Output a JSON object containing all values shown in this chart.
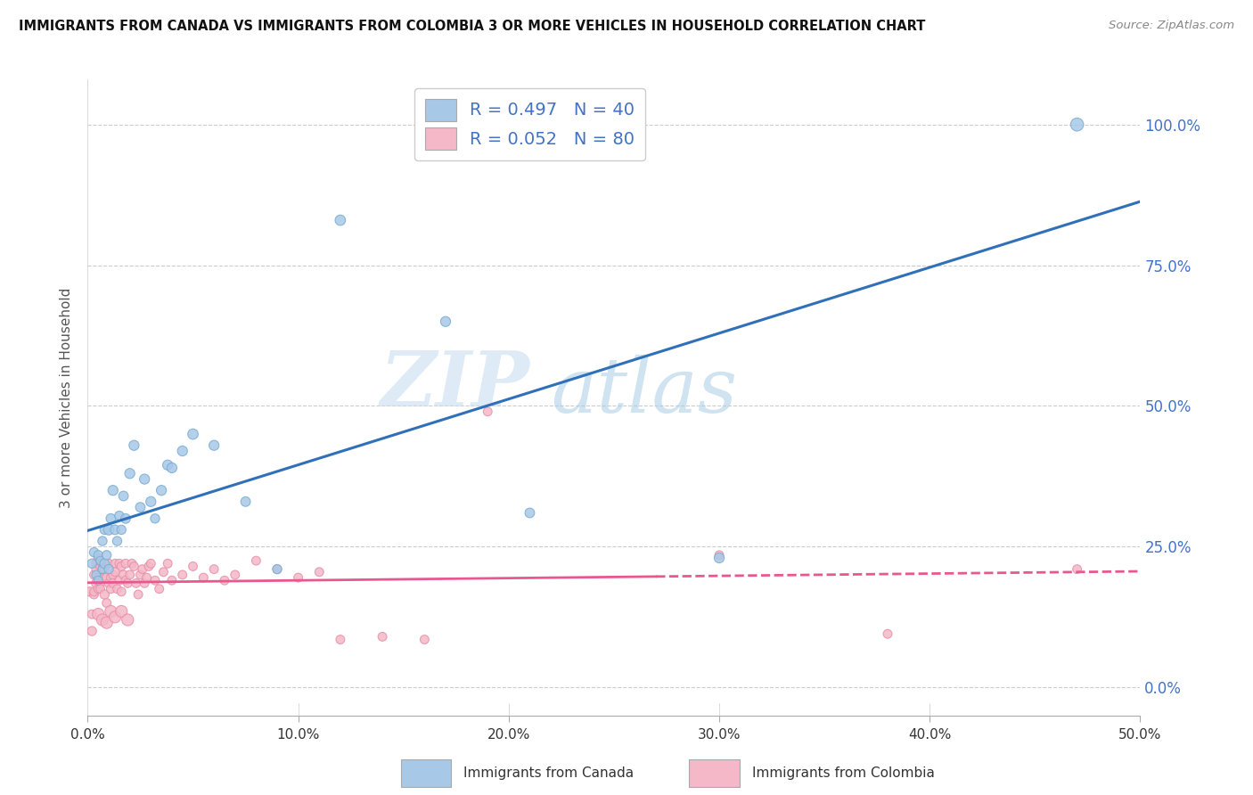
{
  "title": "IMMIGRANTS FROM CANADA VS IMMIGRANTS FROM COLOMBIA 3 OR MORE VEHICLES IN HOUSEHOLD CORRELATION CHART",
  "source": "Source: ZipAtlas.com",
  "ylabel": "3 or more Vehicles in Household",
  "xlim": [
    0.0,
    0.5
  ],
  "ylim": [
    -0.05,
    1.08
  ],
  "xticks": [
    0.0,
    0.1,
    0.2,
    0.3,
    0.4,
    0.5
  ],
  "xticklabels": [
    "0.0%",
    "10.0%",
    "20.0%",
    "30.0%",
    "40.0%",
    "50.0%"
  ],
  "yticks": [
    0.0,
    0.25,
    0.5,
    0.75,
    1.0
  ],
  "yticklabels": [
    "0.0%",
    "25.0%",
    "50.0%",
    "75.0%",
    "100.0%"
  ],
  "canada_color": "#a8c8e8",
  "colombia_color": "#f4b8c8",
  "canada_edge_color": "#7aaed0",
  "colombia_edge_color": "#e890a8",
  "canada_line_color": "#3070b8",
  "colombia_line_color": "#e85890",
  "canada_R": 0.497,
  "canada_N": 40,
  "colombia_R": 0.052,
  "colombia_N": 80,
  "legend_R_color": "#4472c4",
  "legend_N_color": "#2e4090",
  "canada_x": [
    0.002,
    0.003,
    0.004,
    0.005,
    0.005,
    0.006,
    0.007,
    0.007,
    0.008,
    0.008,
    0.009,
    0.01,
    0.01,
    0.011,
    0.012,
    0.013,
    0.014,
    0.015,
    0.016,
    0.017,
    0.018,
    0.02,
    0.022,
    0.025,
    0.027,
    0.03,
    0.032,
    0.035,
    0.038,
    0.04,
    0.045,
    0.05,
    0.06,
    0.075,
    0.09,
    0.12,
    0.17,
    0.21,
    0.3,
    0.47
  ],
  "canada_y": [
    0.22,
    0.24,
    0.2,
    0.19,
    0.235,
    0.225,
    0.21,
    0.26,
    0.22,
    0.28,
    0.235,
    0.21,
    0.28,
    0.3,
    0.35,
    0.28,
    0.26,
    0.305,
    0.28,
    0.34,
    0.3,
    0.38,
    0.43,
    0.32,
    0.37,
    0.33,
    0.3,
    0.35,
    0.395,
    0.39,
    0.42,
    0.45,
    0.43,
    0.33,
    0.21,
    0.83,
    0.65,
    0.31,
    0.23,
    1.0
  ],
  "canada_sizes": [
    55,
    55,
    50,
    50,
    55,
    50,
    50,
    55,
    60,
    55,
    55,
    55,
    70,
    60,
    65,
    60,
    55,
    55,
    55,
    60,
    60,
    65,
    65,
    60,
    65,
    65,
    55,
    65,
    65,
    65,
    65,
    70,
    65,
    60,
    55,
    70,
    65,
    60,
    65,
    110
  ],
  "colombia_x": [
    0.001,
    0.002,
    0.002,
    0.003,
    0.003,
    0.003,
    0.004,
    0.004,
    0.004,
    0.005,
    0.005,
    0.005,
    0.006,
    0.006,
    0.006,
    0.007,
    0.007,
    0.007,
    0.008,
    0.008,
    0.008,
    0.009,
    0.009,
    0.01,
    0.01,
    0.011,
    0.011,
    0.012,
    0.012,
    0.013,
    0.013,
    0.014,
    0.015,
    0.015,
    0.016,
    0.016,
    0.017,
    0.018,
    0.018,
    0.019,
    0.02,
    0.021,
    0.022,
    0.023,
    0.024,
    0.025,
    0.026,
    0.027,
    0.028,
    0.029,
    0.03,
    0.032,
    0.034,
    0.036,
    0.038,
    0.04,
    0.045,
    0.05,
    0.055,
    0.06,
    0.065,
    0.07,
    0.08,
    0.09,
    0.1,
    0.11,
    0.12,
    0.14,
    0.16,
    0.19,
    0.005,
    0.007,
    0.009,
    0.011,
    0.013,
    0.016,
    0.019,
    0.3,
    0.38,
    0.47
  ],
  "colombia_y": [
    0.17,
    0.1,
    0.13,
    0.165,
    0.2,
    0.17,
    0.185,
    0.22,
    0.21,
    0.195,
    0.175,
    0.23,
    0.215,
    0.185,
    0.175,
    0.195,
    0.22,
    0.21,
    0.195,
    0.165,
    0.21,
    0.15,
    0.195,
    0.185,
    0.22,
    0.195,
    0.175,
    0.2,
    0.185,
    0.22,
    0.205,
    0.175,
    0.22,
    0.19,
    0.17,
    0.215,
    0.2,
    0.19,
    0.22,
    0.185,
    0.2,
    0.22,
    0.215,
    0.185,
    0.165,
    0.2,
    0.21,
    0.185,
    0.195,
    0.215,
    0.22,
    0.19,
    0.175,
    0.205,
    0.22,
    0.19,
    0.2,
    0.215,
    0.195,
    0.21,
    0.19,
    0.2,
    0.225,
    0.21,
    0.195,
    0.205,
    0.085,
    0.09,
    0.085,
    0.49,
    0.13,
    0.12,
    0.115,
    0.135,
    0.125,
    0.135,
    0.12,
    0.235,
    0.095,
    0.21
  ],
  "colombia_sizes": [
    55,
    55,
    50,
    50,
    50,
    50,
    55,
    55,
    50,
    50,
    50,
    55,
    50,
    50,
    50,
    50,
    55,
    50,
    50,
    55,
    50,
    50,
    55,
    50,
    50,
    50,
    50,
    50,
    50,
    50,
    50,
    50,
    50,
    50,
    50,
    50,
    50,
    50,
    50,
    50,
    50,
    50,
    50,
    50,
    50,
    50,
    50,
    50,
    50,
    50,
    50,
    50,
    50,
    50,
    50,
    50,
    50,
    50,
    50,
    50,
    50,
    50,
    50,
    50,
    50,
    50,
    50,
    50,
    50,
    50,
    90,
    90,
    90,
    90,
    90,
    90,
    90,
    50,
    50,
    50
  ]
}
